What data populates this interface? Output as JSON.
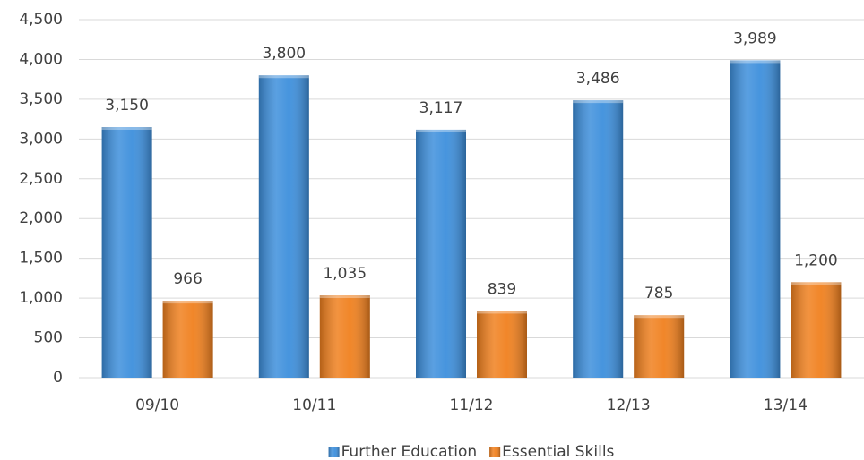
{
  "chart_data": {
    "type": "bar",
    "categories": [
      "09/10",
      "10/11",
      "11/12",
      "12/13",
      "13/14"
    ],
    "series": [
      {
        "name": "Further Education",
        "color": "#3d8fdc",
        "values": [
          3150,
          3800,
          3117,
          3486,
          3989
        ],
        "value_labels": [
          "3,150",
          "3,800",
          "3,117",
          "3,486",
          "3,989"
        ]
      },
      {
        "name": "Essential Skills",
        "color": "#f0801e",
        "values": [
          966,
          1035,
          839,
          785,
          1200
        ],
        "value_labels": [
          "966",
          "1,035",
          "839",
          "785",
          "1,200"
        ]
      }
    ],
    "ylim": [
      0,
      4500
    ],
    "yticks": [
      0,
      500,
      {
        "value": 1000,
        "label": "1,000"
      },
      {
        "value": 1500,
        "label": "1,500"
      },
      {
        "value": 2000,
        "label": "2,000"
      },
      {
        "value": 2500,
        "label": "2,500"
      },
      {
        "value": 3000,
        "label": "3,000"
      },
      {
        "value": 3500,
        "label": "3,500"
      },
      {
        "value": 4000,
        "label": "4,000"
      },
      {
        "value": 4500,
        "label": "4,500"
      }
    ],
    "grid": true,
    "legend": "bottom"
  }
}
